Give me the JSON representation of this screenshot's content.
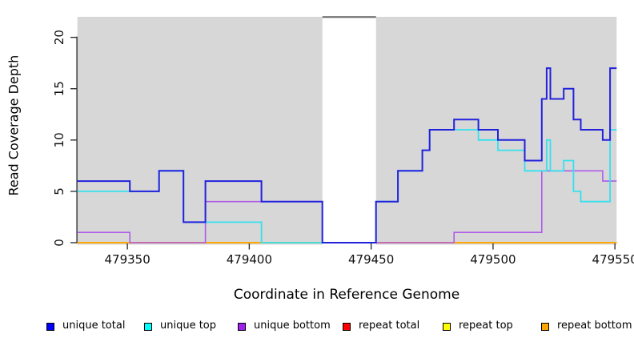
{
  "chart_data": {
    "type": "line",
    "subtype": "step-coverage",
    "title": "",
    "xlabel": "Coordinate in Reference Genome",
    "ylabel": "Read Coverage Depth",
    "x_ticks": [
      479350,
      479400,
      479450,
      479500,
      479550
    ],
    "y_ticks": [
      0,
      5,
      10,
      15,
      20
    ],
    "xlim": [
      479329.5,
      479550.7
    ],
    "ylim": [
      0,
      22
    ],
    "grid": false,
    "plot_background": "#D7D7D7",
    "no_data_region": {
      "start": 479430,
      "end": 479452,
      "fill": "#FFFFFF",
      "top_border_color": "#6b6b6b"
    },
    "legend_position": "bottom",
    "series": [
      {
        "name": "unique total",
        "color": "#2222DD",
        "line_width": 2.0,
        "steps": [
          [
            479329.5,
            6
          ],
          [
            479351,
            5
          ],
          [
            479363,
            7
          ],
          [
            479373,
            2
          ],
          [
            479382,
            6
          ],
          [
            479405,
            4
          ],
          [
            479430,
            0
          ],
          [
            479452,
            4
          ],
          [
            479461,
            7
          ],
          [
            479471,
            9
          ],
          [
            479474,
            11
          ],
          [
            479484,
            12
          ],
          [
            479494,
            11
          ],
          [
            479502,
            10
          ],
          [
            479513,
            8
          ],
          [
            479520,
            14
          ],
          [
            479522,
            17
          ],
          [
            479523.5,
            14
          ],
          [
            479529,
            15
          ],
          [
            479533,
            12
          ],
          [
            479536,
            11
          ],
          [
            479545,
            10
          ],
          [
            479548,
            17
          ],
          [
            479550.7,
            17
          ]
        ]
      },
      {
        "name": "unique top",
        "color": "#35E0EE",
        "line_width": 1.8,
        "steps": [
          [
            479329.5,
            5
          ],
          [
            479363,
            7
          ],
          [
            479373,
            2
          ],
          [
            479405,
            0
          ],
          [
            479452,
            4
          ],
          [
            479461,
            7
          ],
          [
            479471,
            9
          ],
          [
            479474,
            11
          ],
          [
            479494,
            10
          ],
          [
            479502,
            9
          ],
          [
            479513,
            7
          ],
          [
            479522,
            10
          ],
          [
            479523.5,
            7
          ],
          [
            479529,
            8
          ],
          [
            479533,
            5
          ],
          [
            479536,
            4
          ],
          [
            479548,
            11
          ],
          [
            479550.7,
            11
          ]
        ]
      },
      {
        "name": "unique bottom",
        "color": "#AE5BE8",
        "line_width": 1.6,
        "steps": [
          [
            479329.5,
            1
          ],
          [
            479351,
            0
          ],
          [
            479382,
            4
          ],
          [
            479430,
            0
          ],
          [
            479484,
            1
          ],
          [
            479520,
            7
          ],
          [
            479545,
            6
          ],
          [
            479550.7,
            6
          ]
        ]
      },
      {
        "name": "repeat total",
        "color": "#DD0000",
        "line_width": 1.6,
        "steps": [
          [
            479329.5,
            0
          ],
          [
            479550.7,
            0
          ]
        ]
      },
      {
        "name": "repeat top",
        "color": "#FFFF00",
        "line_width": 1.6,
        "steps": [
          [
            479329.5,
            0
          ],
          [
            479550.7,
            0
          ]
        ]
      },
      {
        "name": "repeat bottom",
        "color": "#FFA500",
        "line_width": 1.8,
        "steps": [
          [
            479329.5,
            0
          ],
          [
            479550.7,
            0
          ]
        ]
      }
    ],
    "legend": [
      {
        "label": "unique total",
        "swatch_color": "#0000FF"
      },
      {
        "label": "unique top",
        "swatch_color": "#00FFFF"
      },
      {
        "label": "unique bottom",
        "swatch_color": "#A020F0"
      },
      {
        "label": "repeat total",
        "swatch_color": "#FF0000"
      },
      {
        "label": "repeat top",
        "swatch_color": "#FFFF00"
      },
      {
        "label": "repeat bottom",
        "swatch_color": "#FFA500"
      }
    ]
  }
}
